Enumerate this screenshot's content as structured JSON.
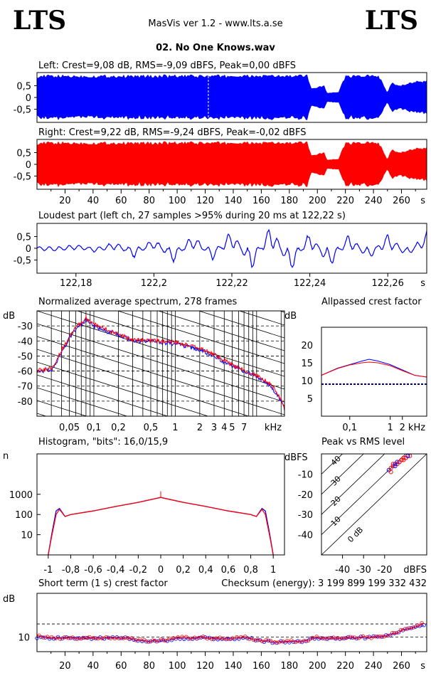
{
  "header": {
    "logo_left": "LTS",
    "logo_right": "LTS",
    "app_title": "MasVis ver 1.2 - www.lts.a.se",
    "file_name": "02. No One Knows.wav"
  },
  "colors": {
    "left": "#0000ff",
    "right": "#ff0000",
    "ref": "#000080"
  },
  "waveform_left": {
    "title": "Left: Crest=9,08 dB, RMS=-9,09 dBFS, Peak=0,00 dBFS",
    "y_ticks": [
      "0,5",
      "0",
      "-0,5"
    ],
    "marker_time_s": 122.22
  },
  "waveform_right": {
    "title": "Right: Crest=9,22 dB, RMS=-9,24 dBFS, Peak=-0,02 dBFS",
    "y_ticks": [
      "0,5",
      "0",
      "-0,5"
    ]
  },
  "time_axis": {
    "ticks": [
      "20",
      "40",
      "60",
      "80",
      "100",
      "120",
      "140",
      "160",
      "180",
      "200",
      "220",
      "240",
      "260"
    ],
    "unit": "s"
  },
  "loudest": {
    "title": "Loudest part (left  ch, 27 samples >95% during 20 ms at 122,22 s)",
    "y_ticks": [
      "0,5",
      "0",
      "-0,5"
    ],
    "x_ticks": [
      "122,18",
      "122,2",
      "122,22",
      "122,24",
      "122,26"
    ],
    "x_unit": "s"
  },
  "spectrum": {
    "title": "Normalized average spectrum, 278 frames",
    "ylabel": "dB",
    "y_ticks": [
      "-30",
      "-40",
      "-50",
      "-60",
      "-70",
      "-80"
    ],
    "x_ticks": [
      "0,05",
      "0,1",
      "0,2",
      "0,5",
      "1",
      "2",
      "3",
      "4",
      "5",
      "7"
    ],
    "x_unit": "kHz"
  },
  "crest_factor": {
    "title": "Allpassed crest factor",
    "ylabel": "dB",
    "y_ticks": [
      "20",
      "15",
      "10",
      "5"
    ],
    "x_ticks": [
      "0,1",
      "1",
      "2"
    ],
    "x_unit": "kHz",
    "reference_db": 9
  },
  "histogram": {
    "title": "Histogram, \"bits\": 16,0/15,9",
    "ylabel": "n",
    "y_ticks": [
      "1000",
      "100",
      "10"
    ],
    "x_ticks": [
      "-1",
      "-0,8",
      "-0,6",
      "-0,4",
      "-0,2",
      "0",
      "0,2",
      "0,4",
      "0,6",
      "0,8",
      "1"
    ]
  },
  "peak_rms": {
    "title": "Peak vs RMS level",
    "ylabel": "dBFS",
    "y_ticks": [
      "-10",
      "-20",
      "-30",
      "-40"
    ],
    "x_ticks": [
      "-40",
      "-30",
      "-20"
    ],
    "x_unit": "dBFS",
    "diag_labels": [
      "40",
      "30",
      "20",
      "10",
      "0 dB"
    ]
  },
  "short_term": {
    "title": "Short term (1 s) crest factor",
    "checksum": "Checksum (energy):  3 199 899 199 332 432",
    "ylabel": "dB",
    "y_ticks": [
      "10"
    ]
  },
  "chart_data": [
    {
      "type": "area",
      "name": "left-waveform",
      "x_range": [
        0,
        278
      ],
      "ylim": [
        -1,
        1
      ],
      "envelope_x": [
        0,
        60,
        120,
        190,
        193,
        196,
        205,
        207,
        215,
        220,
        232,
        240,
        244,
        250,
        253,
        258,
        270,
        278
      ],
      "envelope_y": [
        0.98,
        0.98,
        0.98,
        0.98,
        0.98,
        0.4,
        0.55,
        0.2,
        0.25,
        0.98,
        0.98,
        0.98,
        0.98,
        0.2,
        0.7,
        0.5,
        0.75,
        0.75
      ]
    },
    {
      "type": "area",
      "name": "right-waveform",
      "x_range": [
        0,
        278
      ],
      "ylim": [
        -1,
        1
      ],
      "envelope_x": [
        0,
        60,
        120,
        190,
        193,
        196,
        205,
        207,
        215,
        220,
        232,
        240,
        244,
        250,
        253,
        258,
        270,
        278
      ],
      "envelope_y": [
        0.98,
        0.98,
        0.98,
        0.98,
        0.98,
        0.4,
        0.55,
        0.2,
        0.25,
        0.98,
        0.98,
        0.98,
        0.98,
        0.2,
        0.7,
        0.5,
        0.75,
        0.75
      ]
    },
    {
      "type": "line",
      "name": "loudest-part",
      "x_range": [
        122.17,
        122.27
      ],
      "ylim": [
        -1,
        1
      ],
      "x": [
        122.17,
        122.175,
        122.18,
        122.185,
        122.19,
        122.195,
        122.2,
        122.205,
        122.21,
        122.215,
        122.22,
        122.225,
        122.23,
        122.235,
        122.24,
        122.245,
        122.25,
        122.255,
        122.26,
        122.265,
        122.27
      ],
      "y": [
        0.0,
        -0.05,
        0.1,
        -0.1,
        0.2,
        -0.3,
        0.35,
        -0.5,
        0.5,
        -0.4,
        0.7,
        -0.8,
        0.9,
        -0.9,
        0.6,
        -0.7,
        0.5,
        -0.4,
        0.5,
        -0.3,
        0.6
      ]
    },
    {
      "type": "line",
      "name": "average-spectrum",
      "x_log": true,
      "x_range_khz": [
        0.02,
        22
      ],
      "ylim": [
        -90,
        -20
      ],
      "series": [
        {
          "x": [
            0.02,
            0.03,
            0.04,
            0.05,
            0.06,
            0.08,
            0.1,
            0.15,
            0.2,
            0.3,
            0.5,
            1,
            2,
            3,
            4,
            5,
            7,
            10,
            15,
            20,
            22
          ],
          "y": [
            -60,
            -59,
            -48,
            -38,
            -32,
            -26,
            -30,
            -34,
            -36,
            -40,
            -40,
            -42,
            -46,
            -50,
            -54,
            -56,
            -60,
            -64,
            -70,
            -80,
            -86
          ]
        },
        {
          "x": [
            0.02,
            0.03,
            0.04,
            0.05,
            0.06,
            0.08,
            0.1,
            0.15,
            0.2,
            0.3,
            0.5,
            1,
            2,
            3,
            4,
            5,
            7,
            10,
            15,
            20,
            22
          ],
          "y": [
            -60,
            -58,
            -46,
            -37,
            -31,
            -25,
            -29,
            -33,
            -36,
            -39,
            -40,
            -41,
            -45,
            -49,
            -53,
            -56,
            -60,
            -63,
            -69,
            -79,
            -85
          ]
        }
      ]
    },
    {
      "type": "line",
      "name": "allpassed-crest-factor",
      "x_log": true,
      "x_range_khz": [
        0.02,
        8
      ],
      "ylim": [
        0,
        25
      ],
      "series": [
        {
          "x": [
            0.02,
            0.05,
            0.1,
            0.2,
            0.3,
            0.5,
            1,
            2,
            4,
            8
          ],
          "y": [
            11.5,
            13.5,
            14.5,
            15.5,
            16,
            15.5,
            14.5,
            13,
            11.5,
            11
          ]
        },
        {
          "x": [
            0.02,
            0.05,
            0.1,
            0.2,
            0.3,
            0.5,
            1,
            2,
            4,
            8
          ],
          "y": [
            11.5,
            13.4,
            14.4,
            15,
            15.2,
            15,
            14.2,
            12.8,
            11.5,
            11
          ]
        }
      ]
    },
    {
      "type": "line",
      "name": "histogram",
      "x_range": [
        -1.1,
        1.1
      ],
      "y_log": true,
      "ylim": [
        1,
        100000
      ],
      "series": [
        {
          "x": [
            -1,
            -0.97,
            -0.93,
            -0.9,
            -0.85,
            -0.8,
            -0.6,
            -0.4,
            -0.2,
            0,
            0.2,
            0.4,
            0.6,
            0.8,
            0.85,
            0.9,
            0.93,
            0.97,
            1
          ],
          "y": [
            1,
            10,
            150,
            200,
            80,
            100,
            150,
            250,
            400,
            700,
            400,
            250,
            150,
            100,
            80,
            200,
            150,
            10,
            1
          ]
        },
        {
          "x": [
            -1,
            -0.97,
            -0.93,
            -0.9,
            -0.85,
            -0.8,
            -0.6,
            -0.4,
            -0.2,
            0,
            0.2,
            0.4,
            0.6,
            0.8,
            0.85,
            0.9,
            0.93,
            0.97,
            1
          ],
          "y": [
            1,
            8,
            100,
            180,
            80,
            100,
            150,
            250,
            400,
            700,
            400,
            250,
            150,
            100,
            80,
            180,
            100,
            8,
            1
          ]
        }
      ]
    },
    {
      "type": "scatter",
      "name": "peak-vs-rms",
      "xlim": [
        -50,
        0
      ],
      "ylim": [
        -50,
        0
      ],
      "x": [
        -18,
        -17,
        -16,
        -15,
        -14,
        -13,
        -12,
        -11,
        -10,
        -9,
        -8,
        -16,
        -14,
        -12,
        -10,
        -15,
        -13,
        -11,
        -9,
        -17
      ],
      "y": [
        -8,
        -7,
        -6,
        -5,
        -5,
        -4,
        -3,
        -3,
        -2,
        -1,
        -1,
        -5,
        -4,
        -3,
        -2,
        -6,
        -4,
        -2,
        -1,
        -9
      ]
    },
    {
      "type": "scatter",
      "name": "short-term-crest",
      "xlim": [
        0,
        278
      ],
      "ylim": [
        5,
        25
      ],
      "series": [
        {
          "x": [
            0,
            10,
            20,
            30,
            40,
            50,
            60,
            70,
            80,
            90,
            100,
            110,
            120,
            130,
            140,
            150,
            160,
            170,
            180,
            190,
            200,
            210,
            220,
            230,
            240,
            250,
            260,
            270,
            275
          ],
          "y": [
            10,
            9.8,
            9.6,
            9.8,
            9.5,
            9.6,
            9.8,
            9,
            8.5,
            8.8,
            9.6,
            9.7,
            9.8,
            9.4,
            9.5,
            9.8,
            8.7,
            8.2,
            8.4,
            8.6,
            9.8,
            9.4,
            9.6,
            9.8,
            9.9,
            10.5,
            12,
            13.5,
            14
          ]
        },
        {
          "x": [
            0,
            10,
            20,
            30,
            40,
            50,
            60,
            70,
            80,
            90,
            100,
            110,
            120,
            130,
            140,
            150,
            160,
            170,
            180,
            190,
            200,
            210,
            220,
            230,
            240,
            250,
            260,
            270,
            275
          ],
          "y": [
            10.2,
            9.9,
            9.7,
            9.7,
            9.6,
            9.7,
            9.9,
            9.1,
            8.6,
            8.9,
            9.7,
            9.8,
            9.9,
            9.5,
            9.6,
            9.9,
            8.8,
            8.3,
            8.5,
            8.7,
            9.9,
            9.5,
            9.7,
            9.9,
            10,
            10.6,
            12.2,
            13.7,
            14.5
          ]
        }
      ],
      "reference_lines_db": [
        10,
        14.5
      ]
    }
  ]
}
